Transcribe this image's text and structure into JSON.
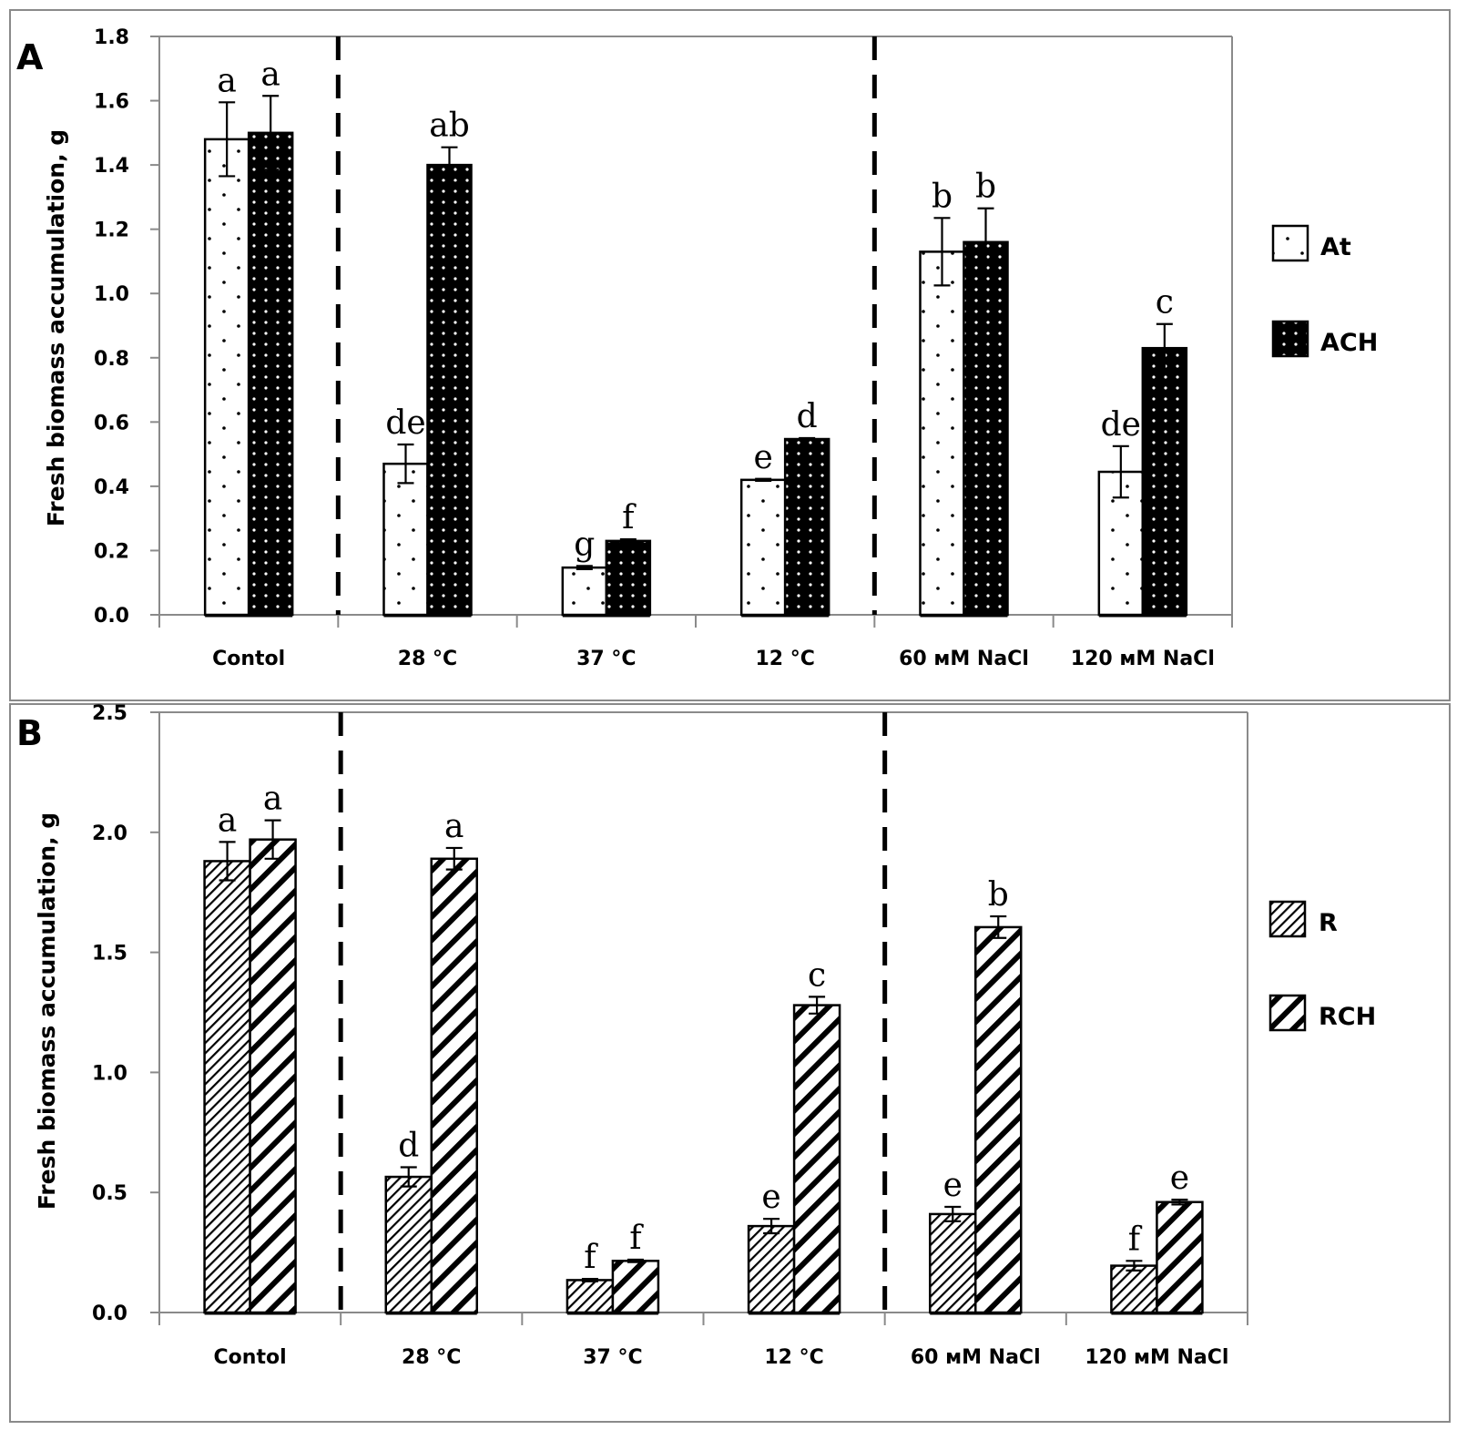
{
  "chart_data": [
    {
      "type": "bar",
      "panel_label": "A",
      "title": "",
      "xlabel": "",
      "ylabel": "Fresh biomass accumulation, g",
      "ylim": [
        0,
        1.8
      ],
      "yticks": [
        0.0,
        0.2,
        0.4,
        0.6,
        0.8,
        1.0,
        1.2,
        1.4,
        1.6,
        1.8
      ],
      "ytick_labels": [
        "0.0",
        "0.2",
        "0.4",
        "0.6",
        "0.8",
        "1.0",
        "1.2",
        "1.4",
        "1.6",
        "1.8"
      ],
      "grid": false,
      "legend_position": "right",
      "categories": [
        "Contol",
        "28 °C",
        "37 °C",
        "12 °C",
        "60 мМ NaCl",
        "120 мМ NaCl"
      ],
      "group_separators_after": [
        0,
        3
      ],
      "series": [
        {
          "name": "At",
          "pattern": "sparse-dots-white",
          "values": [
            1.48,
            0.47,
            0.147,
            0.42,
            1.13,
            0.445
          ],
          "errors": [
            0.115,
            0.06,
            0.005,
            0.003,
            0.105,
            0.08
          ],
          "letters": [
            "a",
            "de",
            "g",
            "e",
            "b",
            "de"
          ]
        },
        {
          "name": "ACH",
          "pattern": "dense-dots-black",
          "values": [
            1.5,
            1.4,
            0.23,
            0.547,
            1.16,
            0.83
          ],
          "errors": [
            0.115,
            0.055,
            0.005,
            0.003,
            0.105,
            0.075
          ],
          "letters": [
            "a",
            "ab",
            "f",
            "d",
            "b",
            "c"
          ]
        }
      ]
    },
    {
      "type": "bar",
      "panel_label": "B",
      "title": "",
      "xlabel": "",
      "ylabel": "Fresh biomass accumulation, g",
      "ylim": [
        0,
        2.5
      ],
      "yticks": [
        0.0,
        0.5,
        1.0,
        1.5,
        2.0,
        2.5
      ],
      "ytick_labels": [
        "0.0",
        "0.5",
        "1.0",
        "1.5",
        "2.0",
        "2.5"
      ],
      "grid": false,
      "legend_position": "right",
      "categories": [
        "Contol",
        "28 °C",
        "37 °C",
        "12 °C",
        "60 мМ NaCl",
        "120 мМ NaCl"
      ],
      "group_separators_after": [
        0,
        3
      ],
      "series": [
        {
          "name": "R",
          "pattern": "fine-diagonal-hatch",
          "values": [
            1.88,
            0.565,
            0.135,
            0.36,
            0.41,
            0.195
          ],
          "errors": [
            0.08,
            0.04,
            0.005,
            0.03,
            0.03,
            0.02
          ],
          "letters": [
            "a",
            "d",
            "f",
            "e",
            "e",
            "f"
          ]
        },
        {
          "name": "RCH",
          "pattern": "wide-diagonal-hatch",
          "values": [
            1.97,
            1.89,
            0.215,
            1.28,
            1.605,
            0.46
          ],
          "errors": [
            0.08,
            0.045,
            0.005,
            0.035,
            0.045,
            0.01
          ],
          "letters": [
            "a",
            "a",
            "f",
            "c",
            "b",
            "e"
          ]
        }
      ]
    }
  ]
}
